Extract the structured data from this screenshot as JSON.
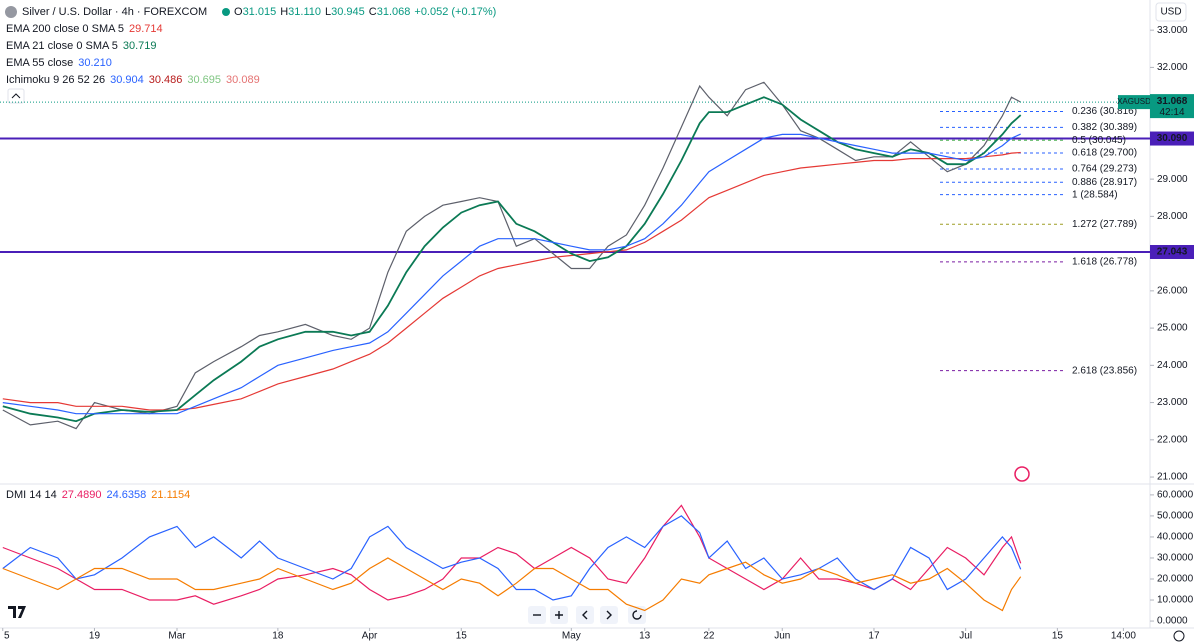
{
  "header": {
    "symbol": "Silver / U.S. Dollar · 4h · FOREXCOM",
    "ohlc": [
      {
        "key": "O",
        "value": "31.015"
      },
      {
        "key": "H",
        "value": "31.110"
      },
      {
        "key": "L",
        "value": "30.945"
      },
      {
        "key": "C",
        "value": "31.068"
      }
    ],
    "change": "+0.052 (+0.17%)",
    "currency": "USD"
  },
  "chart_data": [
    {
      "type": "line",
      "symbol_label": "XAGUSD",
      "last_price": {
        "value": 31.068,
        "label": "31.068"
      },
      "countdown": "42:14",
      "x": [
        0,
        3,
        6,
        8,
        10,
        13,
        16,
        19,
        21,
        23,
        26,
        28,
        30,
        33,
        36,
        38,
        40,
        42,
        44,
        46,
        48,
        50,
        52,
        54,
        56,
        58,
        60,
        62,
        64,
        66,
        68,
        70,
        72,
        74,
        76,
        77,
        79,
        81,
        83,
        85,
        87,
        89,
        91,
        93,
        95,
        97,
        99,
        101,
        103,
        105,
        107,
        109,
        110,
        111
      ],
      "xlim": [
        -0.3,
        125.1
      ],
      "xticks": [
        {
          "value": 0,
          "label": "5"
        },
        {
          "value": 10,
          "label": "19"
        },
        {
          "value": 19,
          "label": "Mar"
        },
        {
          "value": 30,
          "label": "18"
        },
        {
          "value": 40,
          "label": "Apr"
        },
        {
          "value": 50,
          "label": "15"
        },
        {
          "value": 62,
          "label": "May"
        },
        {
          "value": 70,
          "label": "13"
        },
        {
          "value": 77,
          "label": "22"
        },
        {
          "value": 85,
          "label": "Jun"
        },
        {
          "value": 95,
          "label": "17"
        },
        {
          "value": 105,
          "label": "Jul"
        },
        {
          "value": 115,
          "label": "15"
        },
        {
          "value": 122.2,
          "label": "14:00"
        }
      ],
      "ylim": [
        20.84,
        33.81
      ],
      "yticks": [
        {
          "value": 21,
          "label": "21.000"
        },
        {
          "value": 22,
          "label": "22.000"
        },
        {
          "value": 23,
          "label": "23.000"
        },
        {
          "value": 24,
          "label": "24.000"
        },
        {
          "value": 25,
          "label": "25.000"
        },
        {
          "value": 26,
          "label": "26.000"
        },
        {
          "value": 27,
          "label": "27.000"
        },
        {
          "value": 28,
          "label": "28.000"
        },
        {
          "value": 29,
          "label": "29.000"
        },
        {
          "value": 30,
          "label": "30.000"
        },
        {
          "value": 31,
          "label": "31.000"
        },
        {
          "value": 32,
          "label": "32.000"
        },
        {
          "value": 33,
          "label": "33.000"
        }
      ],
      "grid": false,
      "series": [
        {
          "color": "#5d606b",
          "values": [
            22.8,
            22.4,
            22.5,
            22.3,
            23.0,
            22.8,
            22.7,
            22.9,
            23.8,
            24.1,
            24.5,
            24.8,
            24.9,
            25.1,
            24.8,
            24.7,
            25.0,
            26.5,
            27.6,
            28.0,
            28.3,
            28.4,
            28.5,
            28.4,
            27.2,
            27.4,
            27.0,
            26.6,
            26.6,
            27.2,
            27.5,
            28.3,
            29.3,
            30.4,
            31.5,
            31.2,
            30.7,
            31.4,
            31.6,
            31.0,
            30.3,
            30.1,
            29.8,
            29.5,
            29.6,
            29.6,
            30.0,
            29.6,
            29.2,
            29.4,
            29.9,
            30.7,
            31.2,
            31.068
          ]
        },
        {
          "name": "EMA 200 close 0 SMA 5",
          "value_label": "29.714",
          "color": "#e53935",
          "values": [
            23.1,
            23.0,
            23.0,
            22.9,
            22.9,
            22.9,
            22.8,
            22.8,
            22.85,
            22.95,
            23.1,
            23.3,
            23.5,
            23.7,
            23.9,
            24.1,
            24.3,
            24.6,
            25.0,
            25.4,
            25.8,
            26.1,
            26.4,
            26.6,
            26.7,
            26.8,
            26.9,
            26.95,
            27.0,
            27.05,
            27.1,
            27.3,
            27.6,
            27.9,
            28.3,
            28.5,
            28.7,
            28.9,
            29.1,
            29.2,
            29.3,
            29.35,
            29.4,
            29.45,
            29.5,
            29.5,
            29.55,
            29.55,
            29.55,
            29.55,
            29.6,
            29.65,
            29.7,
            29.714
          ]
        },
        {
          "name": "EMA 21 close 0 SMA 5",
          "value_label": "30.719",
          "color": "#0b7a55",
          "values": [
            22.9,
            22.7,
            22.6,
            22.5,
            22.7,
            22.8,
            22.75,
            22.8,
            23.2,
            23.6,
            24.1,
            24.5,
            24.7,
            24.9,
            24.9,
            24.8,
            24.9,
            25.6,
            26.5,
            27.2,
            27.7,
            28.1,
            28.3,
            28.4,
            27.8,
            27.6,
            27.3,
            27.0,
            26.8,
            26.9,
            27.2,
            27.8,
            28.6,
            29.5,
            30.5,
            30.8,
            30.8,
            31.0,
            31.2,
            31.0,
            30.6,
            30.3,
            30.0,
            29.8,
            29.7,
            29.6,
            29.8,
            29.7,
            29.4,
            29.4,
            29.7,
            30.2,
            30.5,
            30.719
          ]
        },
        {
          "name": "EMA 55 close",
          "value_label": "30.210",
          "color": "#2962ff",
          "values": [
            23.0,
            22.9,
            22.8,
            22.7,
            22.7,
            22.7,
            22.7,
            22.7,
            22.9,
            23.1,
            23.4,
            23.7,
            24.0,
            24.2,
            24.4,
            24.5,
            24.6,
            24.9,
            25.4,
            25.9,
            26.4,
            26.8,
            27.2,
            27.4,
            27.4,
            27.4,
            27.3,
            27.2,
            27.1,
            27.1,
            27.2,
            27.4,
            27.8,
            28.3,
            28.9,
            29.2,
            29.5,
            29.8,
            30.1,
            30.2,
            30.2,
            30.1,
            30.0,
            29.9,
            29.8,
            29.7,
            29.7,
            29.7,
            29.6,
            29.5,
            29.6,
            29.9,
            30.1,
            30.21
          ]
        }
      ],
      "ichimoku": {
        "name": "Ichimoku 9 26 52 26",
        "values": [
          {
            "value": 30.904,
            "color": "#2962ff"
          },
          {
            "value": 30.486,
            "color": "#b71c1c"
          },
          {
            "value": 30.695,
            "color": "#81c784"
          },
          {
            "value": 30.089,
            "color": "#e57373"
          }
        ]
      },
      "levels": [
        {
          "value": 30.09,
          "label": "30.090"
        },
        {
          "value": 27.043,
          "label": "27.043"
        }
      ],
      "level_color": "#4a1fb8",
      "fib_levels": [
        {
          "value": 30.816,
          "label": "0.236 (30.816)",
          "color": "#2962ff"
        },
        {
          "value": 30.389,
          "label": "0.382 (30.389)",
          "color": "#2962ff"
        },
        {
          "value": 30.045,
          "label": "0.5 (30.045)",
          "color": "#4caf50"
        },
        {
          "value": 29.7,
          "label": "0.618 (29.700)",
          "color": "#2962ff"
        },
        {
          "value": 29.273,
          "label": "0.764 (29.273)",
          "color": "#2962ff"
        },
        {
          "value": 28.917,
          "label": "0.886 (28.917)",
          "color": "#2962ff"
        },
        {
          "value": 28.584,
          "label": "1 (28.584)",
          "color": "#2962ff"
        },
        {
          "value": 27.789,
          "label": "1.272 (27.789)",
          "color": "#9e9d24"
        },
        {
          "value": 26.778,
          "label": "1.618 (26.778)",
          "color": "#7b1fa2"
        },
        {
          "value": 23.856,
          "label": "2.618 (23.856)",
          "color": "#7b1fa2"
        }
      ]
    },
    {
      "type": "line",
      "title": "DMI 14 14",
      "ylim": [
        -3.3,
        64.7
      ],
      "yticks": [
        {
          "value": 0,
          "label": "0.0000"
        },
        {
          "value": 10,
          "label": "10.0000"
        },
        {
          "value": 20,
          "label": "20.0000"
        },
        {
          "value": 30,
          "label": "30.0000"
        },
        {
          "value": 40,
          "label": "40.0000"
        },
        {
          "value": 50,
          "label": "50.0000"
        },
        {
          "value": 60,
          "label": "60.0000"
        }
      ],
      "series": [
        {
          "value_label": "27.4890",
          "color": "#e91e63",
          "values": [
            35,
            30,
            25,
            20,
            15,
            15,
            10,
            10,
            12,
            8,
            12,
            15,
            20,
            22,
            25,
            22,
            15,
            10,
            12,
            15,
            20,
            30,
            30,
            35,
            32,
            25,
            30,
            35,
            30,
            20,
            18,
            30,
            45,
            55,
            40,
            30,
            25,
            20,
            15,
            20,
            30,
            20,
            20,
            18,
            15,
            20,
            15,
            25,
            35,
            30,
            22,
            35,
            40,
            27.489
          ]
        },
        {
          "value_label": "24.6358",
          "color": "#2962ff",
          "values": [
            25,
            35,
            30,
            20,
            22,
            30,
            40,
            45,
            35,
            40,
            30,
            38,
            30,
            25,
            20,
            25,
            40,
            45,
            35,
            30,
            25,
            28,
            30,
            25,
            15,
            15,
            10,
            12,
            25,
            35,
            40,
            35,
            45,
            50,
            42,
            30,
            38,
            25,
            30,
            20,
            22,
            25,
            30,
            20,
            15,
            20,
            35,
            30,
            15,
            20,
            30,
            40,
            35,
            24.6358
          ]
        },
        {
          "value_label": "21.1154",
          "color": "#f57c00",
          "values": [
            25,
            20,
            15,
            20,
            25,
            25,
            20,
            20,
            15,
            15,
            18,
            20,
            25,
            20,
            15,
            18,
            25,
            30,
            25,
            20,
            15,
            20,
            18,
            12,
            18,
            25,
            25,
            20,
            15,
            15,
            8,
            5,
            10,
            20,
            18,
            22,
            25,
            28,
            22,
            18,
            20,
            25,
            22,
            18,
            20,
            22,
            18,
            20,
            25,
            18,
            10,
            5,
            15,
            21.1154
          ]
        }
      ]
    }
  ]
}
